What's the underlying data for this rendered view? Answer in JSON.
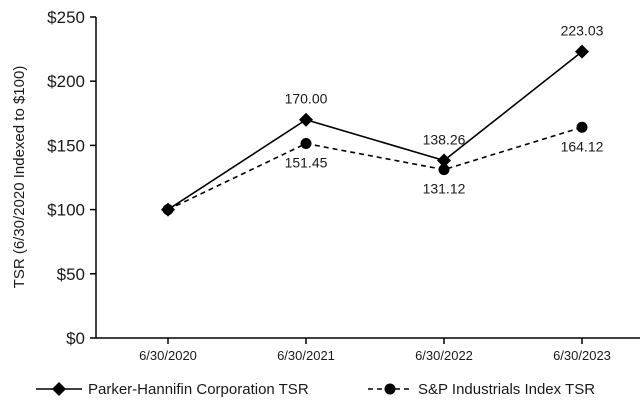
{
  "chart_data": {
    "type": "line",
    "categories": [
      "6/30/2020",
      "6/30/2021",
      "6/30/2022",
      "6/30/2023"
    ],
    "series": [
      {
        "name": "Parker-Hannifin Corporation TSR",
        "values": [
          100,
          170.0,
          138.26,
          223.03
        ],
        "labels": [
          "",
          "170.00",
          "138.26",
          "223.03"
        ],
        "line_style": "solid",
        "marker": "diamond",
        "color": "#000000"
      },
      {
        "name": "S&P Industrials Index TSR",
        "values": [
          100,
          151.45,
          131.12,
          164.12
        ],
        "labels": [
          "",
          "151.45",
          "131.12",
          "164.12"
        ],
        "line_style": "dashed",
        "marker": "circle",
        "color": "#000000"
      }
    ],
    "y_ticks": [
      0,
      50,
      100,
      150,
      200,
      250
    ],
    "y_tick_labels": [
      "$0",
      "$50",
      "$100",
      "$150",
      "$200",
      "$250"
    ],
    "ylabel": "TSR (6/30/2020 Indexed to $100)",
    "xlabel": "",
    "title": "",
    "ylim": [
      0,
      250
    ],
    "grid": false,
    "legend_position": "bottom"
  }
}
